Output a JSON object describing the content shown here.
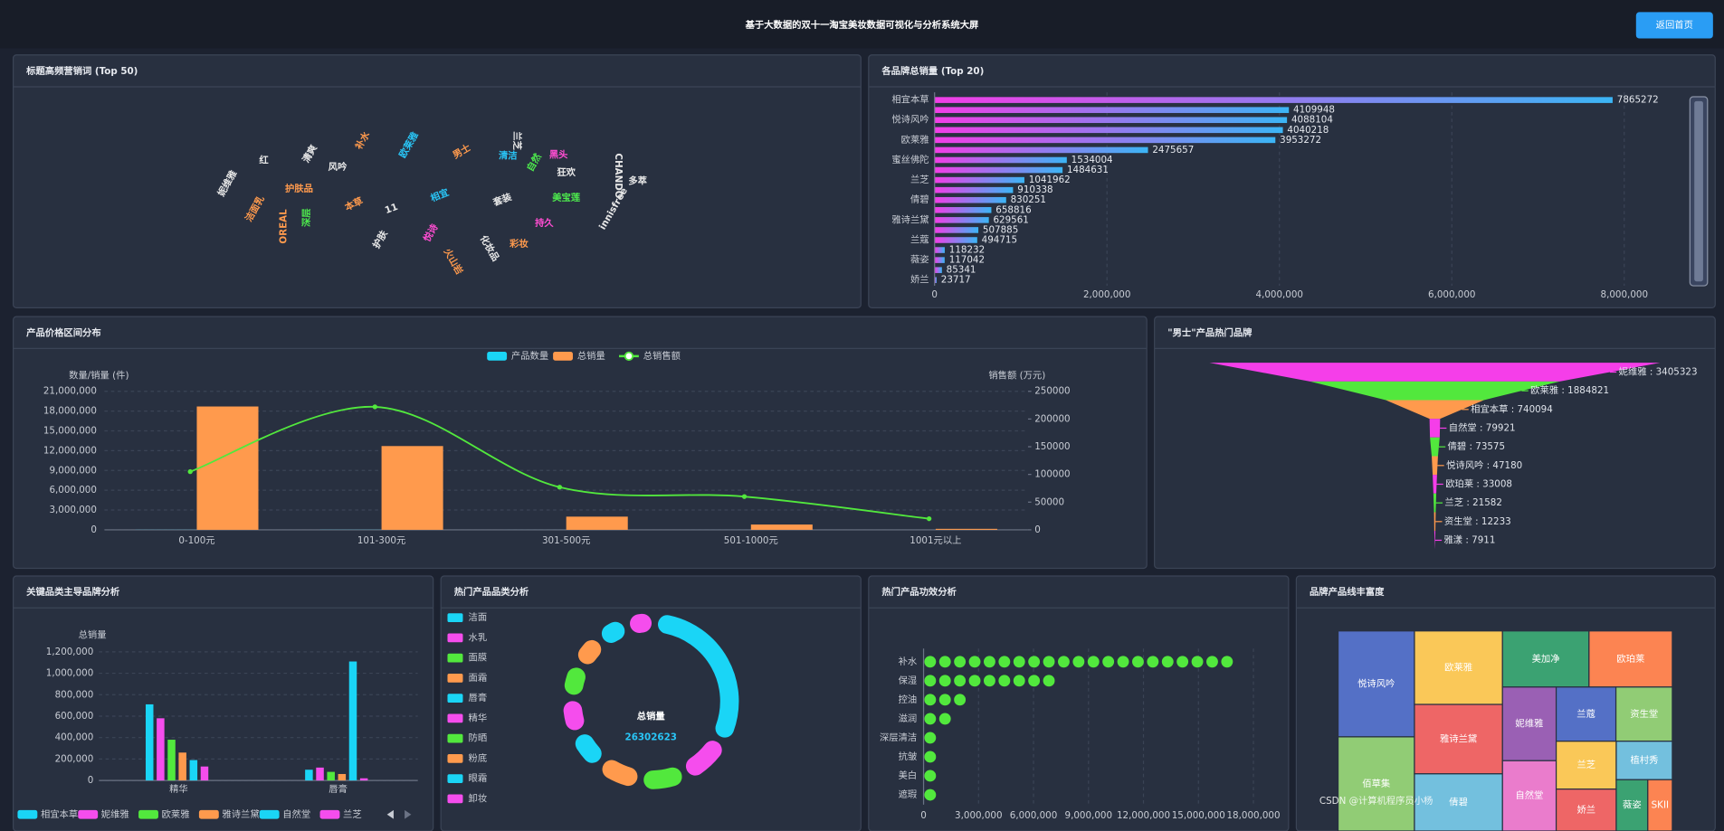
{
  "header": {
    "title": "基于大数据的双十一淘宝美妆数据可视化与分析系统大屏",
    "button": "返回首页",
    "watermark": "CSDN @计算机程序员小杨"
  },
  "chart_data": [
    {
      "type": "wordcloud",
      "title": "标题高频营销词 (Top 50)",
      "words": [
        "相宜",
        "本草",
        "套装",
        "美宝莲",
        "男士",
        "护肤品",
        "11",
        "护肤",
        "持久",
        "狂欢",
        "清洁",
        "欧莱雅",
        "风吟",
        "深层",
        "洁面乳",
        "OREAL",
        "化妆品",
        "innisfree",
        "CHANDO",
        "自然",
        "彩妆",
        "悦诗",
        "红",
        "妮维雅",
        "清爽",
        "多萃",
        "黑头",
        "火山岩",
        "兰芝",
        "补水"
      ],
      "weights": [
        100,
        85,
        70,
        60,
        50,
        45,
        45,
        35,
        35,
        28,
        28,
        28,
        24,
        26,
        24,
        22,
        22,
        22,
        18,
        22,
        18,
        20,
        16,
        16,
        16,
        12,
        14,
        12,
        14,
        14
      ],
      "colors": [
        "#29c5f6",
        "#ff9a4d",
        "#e8e8e8",
        "#4de84d",
        "#ff9a4d",
        "#ff9a4d",
        "#e8e8e8",
        "#e8e8e8",
        "#ff4dd2",
        "#e8e8e8",
        "#29c5f6",
        "#29c5f6",
        "#e8e8e8",
        "#4de84d",
        "#ff9a4d",
        "#ff9a4d",
        "#e8e8e8",
        "#e8e8e8",
        "#e8e8e8",
        "#4de84d",
        "#ff9a4d",
        "#ff4dd2",
        "#e8e8e8",
        "#e8e8e8",
        "#e8e8e8",
        "#e8e8e8",
        "#ff4dd2",
        "#ff9a4d",
        "#e8e8e8",
        "#ff9a4d"
      ]
    },
    {
      "type": "bar",
      "orientation": "horizontal",
      "title": "各品牌总销量 (Top 20)",
      "categories": [
        "相宜本草",
        null,
        "悦诗风吟",
        null,
        "欧莱雅",
        null,
        "蜜丝佛陀",
        null,
        "兰芝",
        null,
        "倩碧",
        null,
        "雅诗兰黛",
        null,
        "兰蔻",
        null,
        "薇姿",
        null,
        "娇兰"
      ],
      "values": [
        7865272,
        4109948,
        4088104,
        4040218,
        3953272,
        2475657,
        1534004,
        1484631,
        1041962,
        910338,
        830251,
        658816,
        629561,
        507885,
        494715,
        118232,
        117042,
        85341,
        23717
      ],
      "xlim": [
        0,
        8800000
      ],
      "xticks": [
        0,
        {
          "value": 2000000,
          "label": "2,000,000"
        },
        {
          "value": 4000000,
          "label": "4,000,000"
        },
        {
          "value": 6000000,
          "label": "6,000,000"
        },
        {
          "value": 8000000,
          "label": "8,000,000"
        }
      ],
      "colors": [
        "#f13ee7",
        "#3bb5f5"
      ],
      "grid": true
    },
    {
      "type": "combo",
      "title": "产品价格区间分布",
      "categories": [
        "0-100元",
        "101-300元",
        "301-500元",
        "501-1000元",
        "1001元以上"
      ],
      "series": [
        {
          "name": "产品数量",
          "type": "bar",
          "color": "#1ad5f6",
          "values": [
            12000,
            15000,
            3000,
            1500,
            300
          ]
        },
        {
          "name": "总销量",
          "type": "bar",
          "color": "#ff9a4d",
          "values": [
            18700000,
            12700000,
            2000000,
            800000,
            150000
          ]
        },
        {
          "name": "总销售额",
          "type": "line",
          "axis": "y2",
          "color": "#52e83d",
          "values": [
            105000,
            222000,
            77000,
            60000,
            20000
          ]
        }
      ],
      "ylabel": "数量/销量 (件)",
      "y2label": "销售额 (万元)",
      "ylim": [
        0,
        21000000
      ],
      "yticks": [
        0,
        {
          "value": 3000000,
          "label": "3,000,000"
        },
        {
          "value": 6000000,
          "label": "6,000,000"
        },
        {
          "value": 9000000,
          "label": "9,000,000"
        },
        {
          "value": 12000000,
          "label": "12,000,000"
        },
        {
          "value": 15000000,
          "label": "15,000,000"
        },
        {
          "value": 18000000,
          "label": "18,000,000"
        },
        {
          "value": 21000000,
          "label": "21,000,000"
        }
      ],
      "y2lim": [
        0,
        250000
      ],
      "y2ticks": [
        0,
        50000,
        100000,
        150000,
        200000,
        250000
      ],
      "grid": true
    },
    {
      "type": "funnel",
      "title": "\"男士\"产品热门品牌",
      "categories": [
        "妮维雅",
        "欧莱雅",
        "相宜本草",
        "自然堂",
        "倩碧",
        "悦诗风吟",
        "欧珀莱",
        "兰芝",
        "资生堂",
        "雅漾"
      ],
      "values": [
        3405323,
        1884821,
        740094,
        79921,
        73575,
        47180,
        33008,
        21582,
        12233,
        7911
      ],
      "value_separator": " : ",
      "colors": [
        "#f53ee9",
        "#52e83d",
        "#ff9a4d"
      ]
    },
    {
      "type": "grouped-bar",
      "title": "关键品类主导品牌分析",
      "categories": [
        "精华",
        "唇膏"
      ],
      "ylabel": "总销量",
      "series": [
        {
          "name": "相宜本草",
          "color": "#1ad5f6",
          "values": [
            710000,
            100000
          ]
        },
        {
          "name": "妮维雅",
          "color": "#f54ded",
          "values": [
            580000,
            120000
          ]
        },
        {
          "name": "欧莱雅",
          "color": "#52e83d",
          "values": [
            380000,
            80000
          ]
        },
        {
          "name": "雅诗兰黛",
          "color": "#ff9a4d",
          "values": [
            260000,
            60000
          ]
        },
        {
          "name": "自然堂",
          "color": "#1ad5f6",
          "values": [
            190000,
            1110000
          ]
        },
        {
          "name": "兰芝",
          "color": "#f54ded",
          "values": [
            130000,
            20000
          ]
        }
      ],
      "ylim": [
        0,
        1200000
      ],
      "yticks": [
        0,
        {
          "value": 200000,
          "label": "200,000"
        },
        {
          "value": 400000,
          "label": "400,000"
        },
        {
          "value": 600000,
          "label": "600,000"
        },
        {
          "value": 800000,
          "label": "800,000"
        },
        {
          "value": 1000000,
          "label": "1,000,000"
        },
        {
          "value": 1200000,
          "label": "1,200,000"
        }
      ],
      "grid": true
    },
    {
      "type": "donut",
      "title": "热门产品品类分析",
      "categories": [
        "洁面",
        "水乳",
        "面膜",
        "面霜",
        "唇膏",
        "精华",
        "防晒",
        "粉底",
        "眼霜",
        "卸妆"
      ],
      "values": [
        8500000,
        2600000,
        2400000,
        2300000,
        2000000,
        1900000,
        1800000,
        1700000,
        1600000,
        1502623
      ],
      "colors": [
        "#1ad5f6",
        "#f54ded",
        "#52e83d",
        "#ff9a4d"
      ],
      "center_label": "总销量",
      "total": 26302623
    },
    {
      "type": "pictorial-bar",
      "title": "热门产品功效分析",
      "categories": [
        "补水",
        "保湿",
        "控油",
        "滋润",
        "深层清洁",
        "抗皱",
        "美白",
        "遮瑕"
      ],
      "values": [
        17000000,
        7500000,
        2500000,
        1300000,
        1200000,
        600000,
        600000,
        600000
      ],
      "xlim": [
        0,
        18000000
      ],
      "xticks": [
        0,
        {
          "value": 3000000,
          "label": "3,000,000"
        },
        {
          "value": 6000000,
          "label": "6,000,000"
        },
        {
          "value": 9000000,
          "label": "9,000,000"
        },
        {
          "value": 12000000,
          "label": "12,000,000"
        },
        {
          "value": 15000000,
          "label": "15,000,000"
        },
        {
          "value": 18000000,
          "label": "18,000,000"
        }
      ],
      "color": "#52e83d",
      "grid": true
    },
    {
      "type": "treemap",
      "title": "品牌产品线丰富度",
      "categories": [
        "悦诗风吟",
        "佰草集",
        "欧莱雅",
        "雅诗兰黛",
        "倩碧",
        "美加净",
        "欧珀莱",
        "妮维雅",
        "自然堂",
        "兰蔻",
        "资生堂",
        "兰芝",
        "娇兰",
        "植村秀",
        "薇姿",
        "SKII"
      ],
      "values": [
        45,
        40,
        36,
        34,
        28,
        27,
        26,
        22,
        21,
        18,
        17,
        16,
        14,
        12,
        9,
        7
      ],
      "colors": [
        "#5470c6",
        "#91cc75",
        "#fac858",
        "#ee6666",
        "#73c0de",
        "#3ba272",
        "#fc8452",
        "#9a60b4",
        "#ea7ccc"
      ]
    }
  ]
}
